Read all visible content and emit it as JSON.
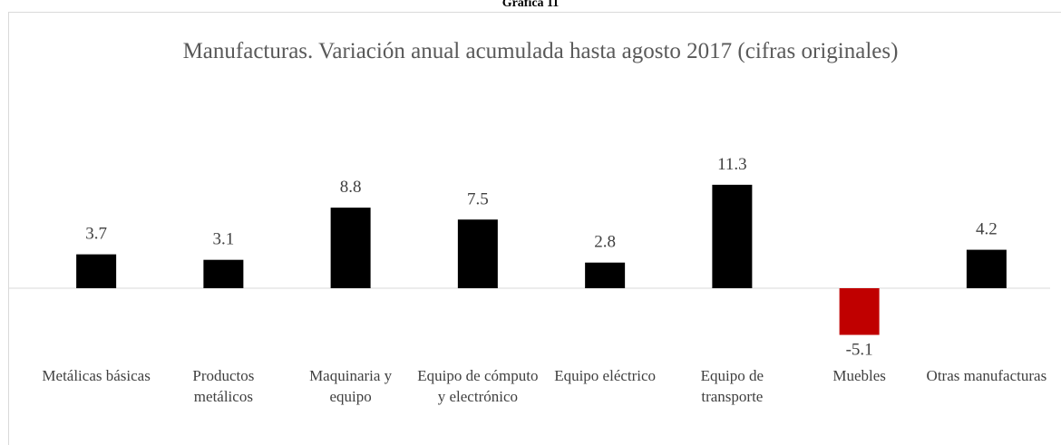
{
  "header": "Gráfica 11",
  "chart_data": {
    "type": "bar",
    "title": "Manufacturas. Variación anual acumulada hasta agosto 2017 (cifras originales)",
    "categories": [
      "Metálicas básicas",
      "Productos metálicos",
      "Maquinaria y equipo",
      "Equipo de cómputo y electrónico",
      "Equipo eléctrico",
      "Equipo de transporte",
      "Muebles",
      "Otras manufacturas"
    ],
    "values": [
      3.7,
      3.1,
      8.8,
      7.5,
      2.8,
      11.3,
      -5.1,
      4.2
    ],
    "colors": [
      "#000000",
      "#000000",
      "#000000",
      "#000000",
      "#000000",
      "#000000",
      "#c00000",
      "#000000"
    ]
  }
}
